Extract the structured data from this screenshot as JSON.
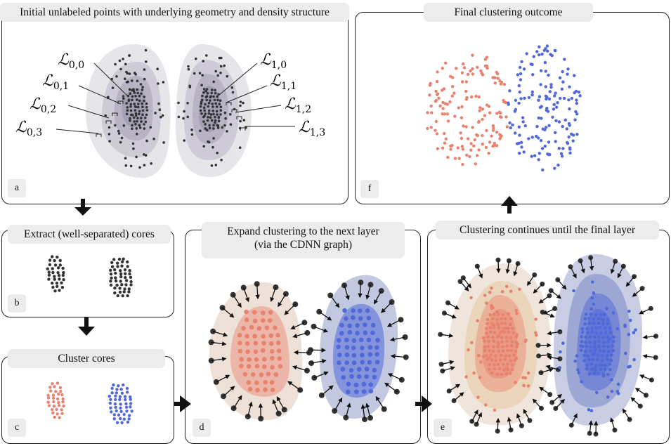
{
  "panels": {
    "a": {
      "title": "Initial unlabeled points with underlying geometry and density structure",
      "label": "a"
    },
    "b": {
      "title": "Extract (well-separated) cores",
      "label": "b"
    },
    "c": {
      "title": "Cluster cores",
      "label": "c"
    },
    "d": {
      "title_line1": "Expand clustering to the next layer",
      "title_line2": "(via the CDNN graph)",
      "label": "d"
    },
    "e": {
      "title": "Clustering continues until the final layer",
      "label": "e"
    },
    "f": {
      "title": "Final clustering outcome",
      "label": "f"
    }
  },
  "layers": {
    "left": [
      {
        "script": "ℒ",
        "sub": "0,0"
      },
      {
        "script": "ℒ",
        "sub": "0,1"
      },
      {
        "script": "ℒ",
        "sub": "0,2"
      },
      {
        "script": "ℒ",
        "sub": "0,3"
      }
    ],
    "right": [
      {
        "script": "ℒ",
        "sub": "1,0"
      },
      {
        "script": "ℒ",
        "sub": "1,1"
      },
      {
        "script": "ℒ",
        "sub": "1,2"
      },
      {
        "script": "ℒ",
        "sub": "1,3"
      }
    ]
  },
  "colors": {
    "red": "#e8826e",
    "blue": "#5068d8",
    "dark": "#333333",
    "region_gray": "#8f88a0",
    "region_beige": "#e6d3c4",
    "region_blue": "#9aa4cc"
  }
}
